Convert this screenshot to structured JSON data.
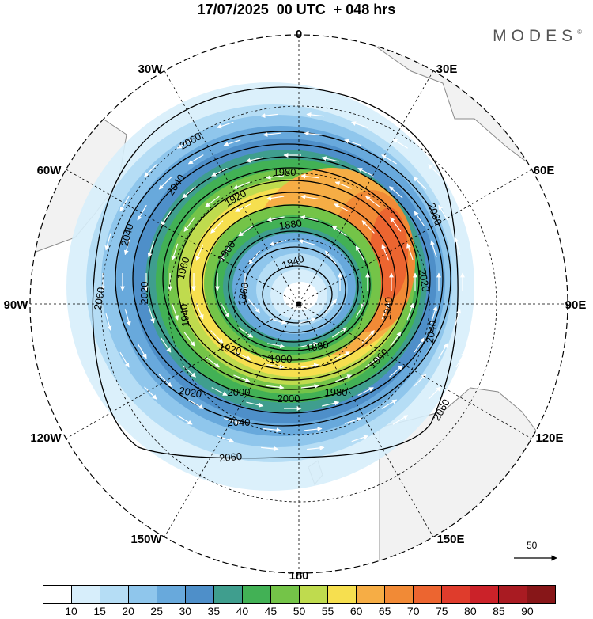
{
  "title": "17/07/2025  00 UTC  + 048 hrs",
  "logo": "MODES",
  "logo_mark": "©",
  "longitude_labels": [
    "0",
    "30E",
    "60E",
    "90E",
    "120E",
    "150E",
    "180",
    "150W",
    "120W",
    "90W",
    "60W",
    "30W"
  ],
  "contour_levels": [
    "1840",
    "1860",
    "1880",
    "1900",
    "1920",
    "1940",
    "1960",
    "1980",
    "2000",
    "2020",
    "2040",
    "2060"
  ],
  "reference_vector": {
    "label": "50",
    "icon": "arrow-right-icon"
  },
  "colorbar": {
    "labels": [
      "10",
      "15",
      "20",
      "25",
      "30",
      "35",
      "40",
      "45",
      "50",
      "55",
      "60",
      "65",
      "70",
      "75",
      "80",
      "85",
      "90"
    ],
    "colors": [
      "#ffffff",
      "#d7eefb",
      "#b5ddf5",
      "#8fc6ec",
      "#68a9dc",
      "#4e8fc9",
      "#3f9e8e",
      "#42b155",
      "#74c448",
      "#bfdb4e",
      "#f6df4f",
      "#f6ad45",
      "#f18a36",
      "#ec6530",
      "#df3c2c",
      "#cb2229",
      "#a91b22",
      "#871618"
    ]
  },
  "colors": {
    "land": "#f2f2f2",
    "coast": "#8a8a8a",
    "contour": "#000000",
    "grid": "#000000"
  }
}
